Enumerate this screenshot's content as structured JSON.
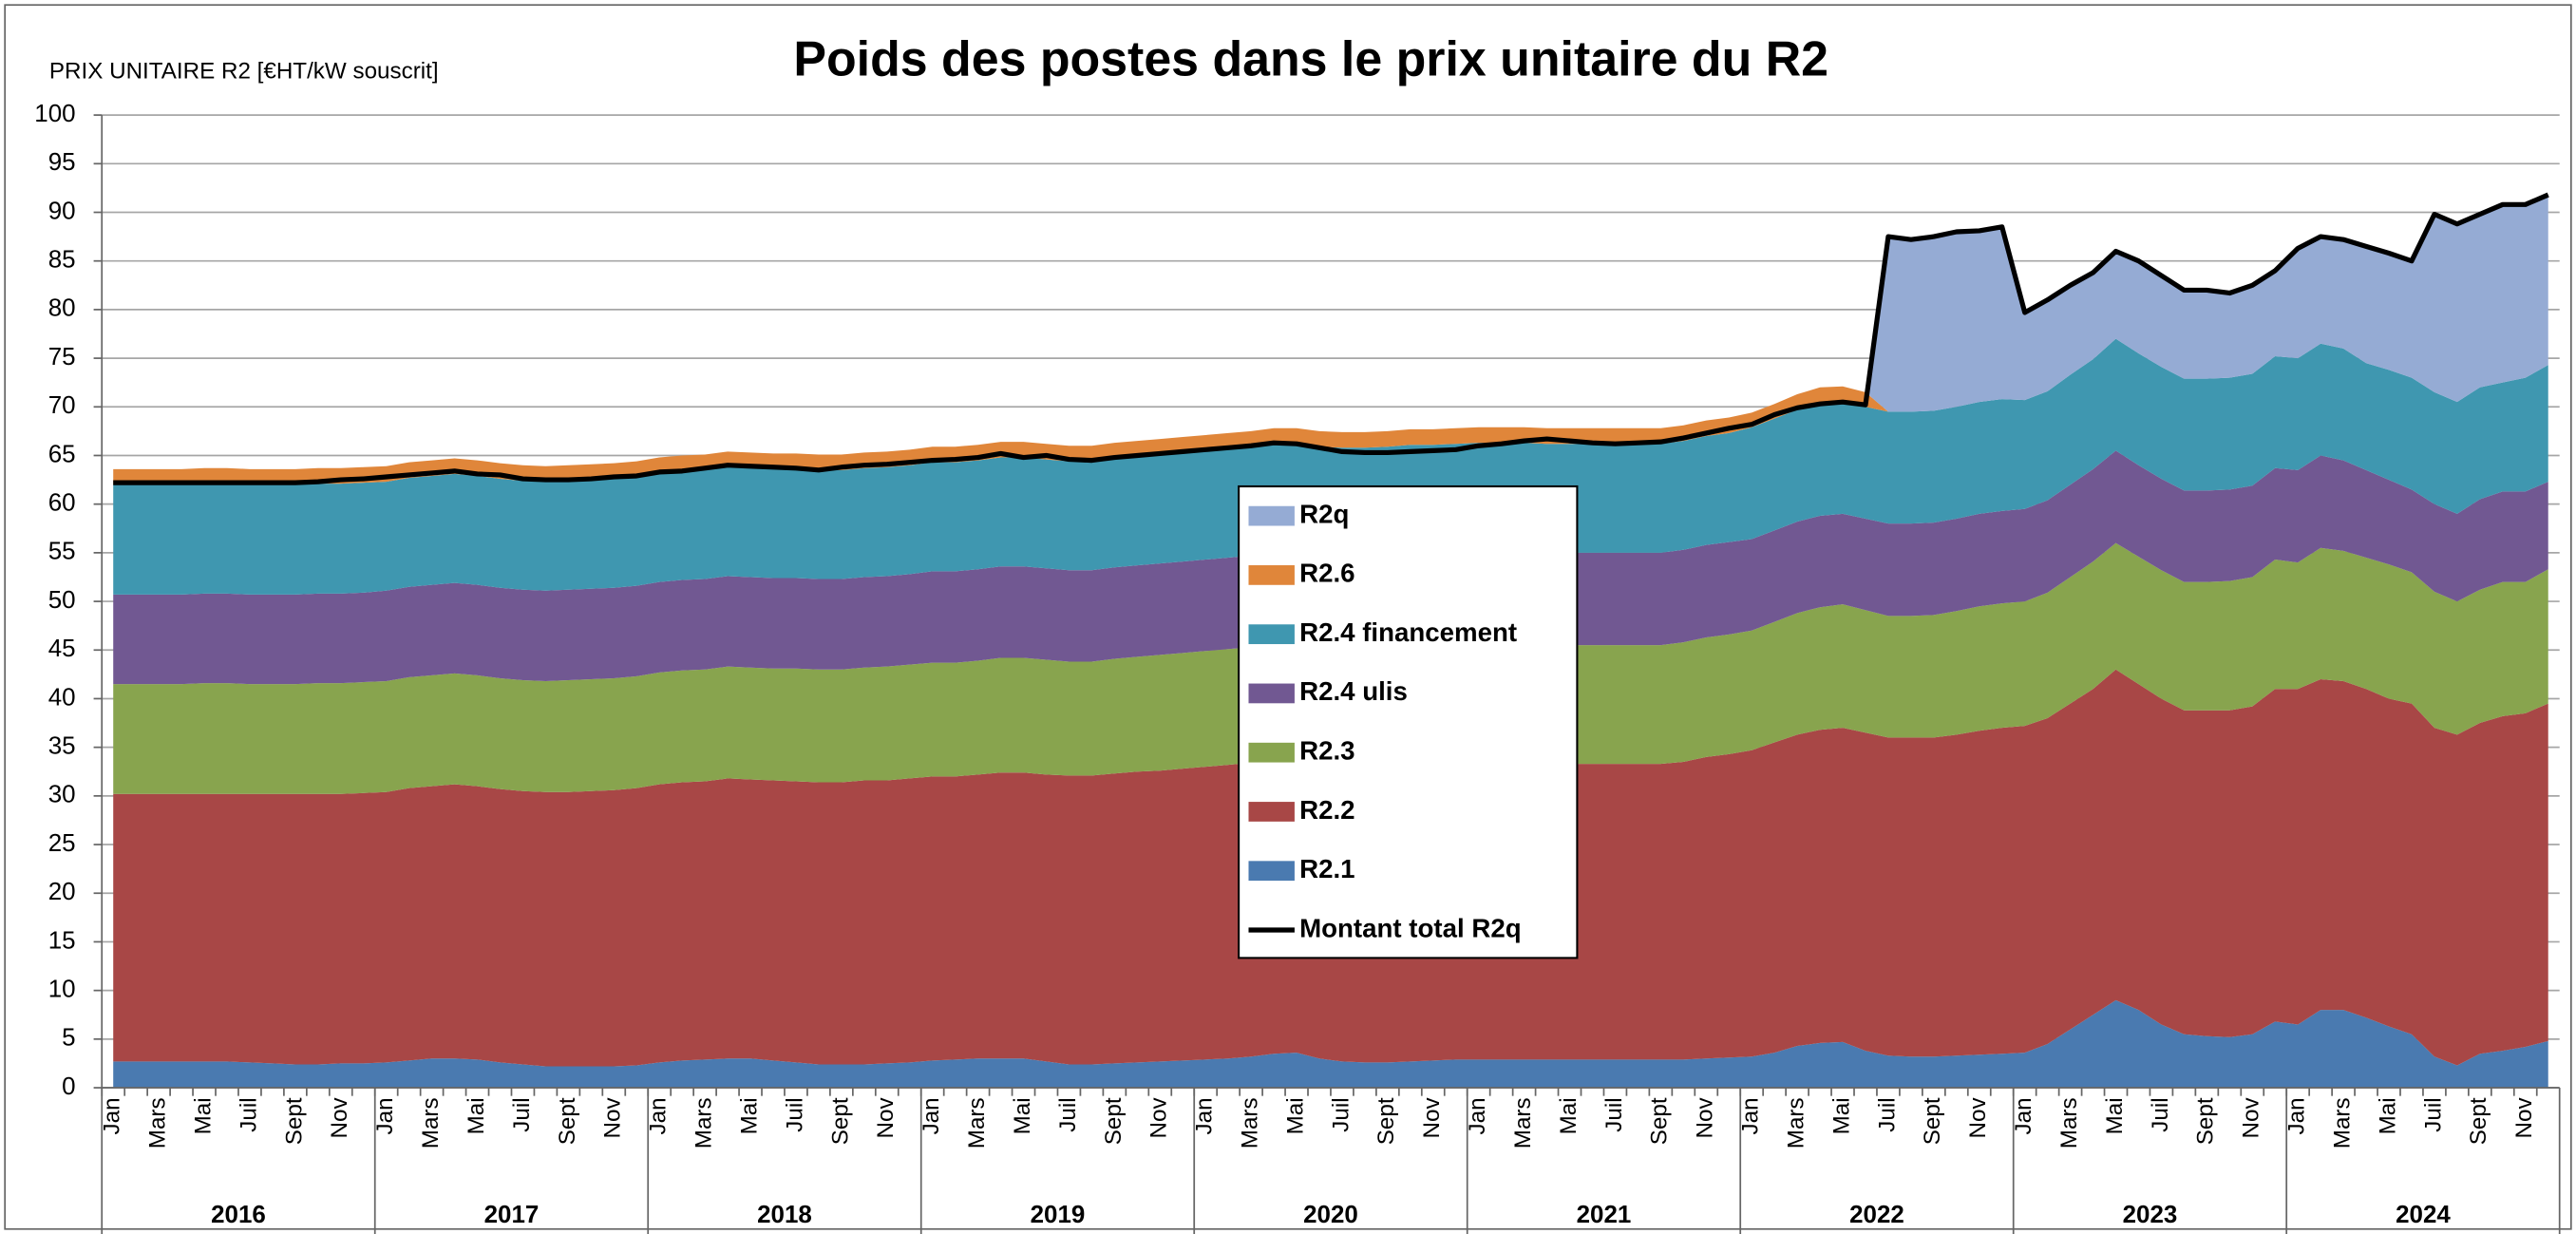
{
  "chart_data": {
    "type": "stacked_area",
    "title": "Poids des postes dans le prix unitaire du R2",
    "y_axis_label": "PRIX UNITAIRE R2 [€HT/kW souscrit]",
    "categories": [
      "Jan",
      null,
      "Mars",
      null,
      "Mai",
      null,
      "Juil",
      null,
      "Sept",
      null,
      "Nov",
      null,
      "Jan",
      null,
      "Mars",
      null,
      "Mai",
      null,
      "Juil",
      null,
      "Sept",
      null,
      "Nov",
      null,
      "Jan",
      null,
      "Mars",
      null,
      "Mai",
      null,
      "Juil",
      null,
      "Sept",
      null,
      "Nov",
      null,
      "Jan",
      null,
      "Mars",
      null,
      "Mai",
      null,
      "Juil",
      null,
      "Sept",
      null,
      "Nov",
      null,
      "Jan",
      null,
      "Mars",
      null,
      "Mai",
      null,
      "Juil",
      null,
      "Sept",
      null,
      "Nov",
      null,
      "Jan",
      null,
      "Mars",
      null,
      "Mai",
      null,
      "Juil",
      null,
      "Sept",
      null,
      "Nov",
      null,
      "Jan",
      null,
      "Mars",
      null,
      "Mai",
      null,
      "Juil",
      null,
      "Sept",
      null,
      "Nov",
      null,
      "Jan",
      null,
      "Mars",
      null,
      "Mai",
      null,
      "Juil",
      null,
      "Sept",
      null,
      "Nov",
      null,
      "Jan",
      null,
      "Mars",
      null,
      "Mai",
      null,
      "Juil",
      null,
      "Sept",
      null,
      "Nov",
      null
    ],
    "year_labels": [
      "2016",
      "2017",
      "2018",
      "2019",
      "2020",
      "2021",
      "2022",
      "2023",
      "2024"
    ],
    "ylim": [
      0,
      100
    ],
    "yticks": [
      0,
      5,
      10,
      15,
      20,
      25,
      30,
      35,
      40,
      45,
      50,
      55,
      60,
      65,
      70,
      75,
      80,
      85,
      90,
      95,
      100
    ],
    "grid": true,
    "series": [
      {
        "name": "R2.1",
        "color": "#4a7ab0",
        "values": [
          2.7,
          2.7,
          2.7,
          2.7,
          2.7,
          2.7,
          2.6,
          2.5,
          2.4,
          2.4,
          2.5,
          2.5,
          2.6,
          2.8,
          3.0,
          3.0,
          2.9,
          2.6,
          2.4,
          2.2,
          2.2,
          2.2,
          2.2,
          2.3,
          2.6,
          2.8,
          2.9,
          3.0,
          3.0,
          2.8,
          2.6,
          2.4,
          2.4,
          2.4,
          2.5,
          2.6,
          2.8,
          2.9,
          3.0,
          3.0,
          3.0,
          2.7,
          2.4,
          2.4,
          2.5,
          2.6,
          2.7,
          2.8,
          2.9,
          3.0,
          3.2,
          3.5,
          3.6,
          3.0,
          2.7,
          2.6,
          2.6,
          2.7,
          2.8,
          2.9,
          2.9,
          2.9,
          2.9,
          2.9,
          2.9,
          2.9,
          2.9,
          2.9,
          2.9,
          2.9,
          3.0,
          3.1,
          3.2,
          3.6,
          4.3,
          4.6,
          4.7,
          3.8,
          3.3,
          3.2,
          3.2,
          3.3,
          3.4,
          3.5,
          3.6,
          4.5,
          6.0,
          7.5,
          9.0,
          8.0,
          6.5,
          5.5,
          5.3,
          5.2,
          5.5,
          6.8,
          6.5,
          8.0,
          8.0,
          7.2,
          6.3,
          5.5,
          3.2,
          2.3,
          3.5,
          3.8,
          4.2,
          4.8
        ]
      },
      {
        "name": "R2.2",
        "color": "#a84746",
        "values": [
          27.5,
          27.5,
          27.5,
          27.5,
          27.5,
          27.5,
          27.6,
          27.7,
          27.8,
          27.8,
          27.7,
          27.8,
          27.8,
          28.0,
          28.0,
          28.2,
          28.1,
          28.1,
          28.1,
          28.2,
          28.2,
          28.3,
          28.4,
          28.5,
          28.6,
          28.6,
          28.6,
          28.8,
          28.7,
          28.8,
          28.9,
          29.0,
          29.0,
          29.2,
          29.1,
          29.2,
          29.2,
          29.1,
          29.2,
          29.4,
          29.4,
          29.5,
          29.7,
          29.7,
          29.8,
          29.9,
          29.9,
          30.0,
          30.1,
          30.2,
          30.2,
          30.1,
          30.0,
          30.3,
          30.5,
          30.6,
          30.7,
          30.7,
          30.6,
          30.6,
          30.6,
          30.6,
          30.5,
          30.4,
          30.4,
          30.4,
          30.4,
          30.4,
          30.4,
          30.6,
          31.0,
          31.2,
          31.5,
          31.9,
          32.0,
          32.2,
          32.3,
          32.7,
          32.7,
          32.8,
          32.8,
          33.0,
          33.3,
          33.5,
          33.6,
          33.5,
          33.5,
          33.5,
          34.0,
          33.5,
          33.5,
          33.3,
          33.5,
          33.6,
          33.7,
          34.2,
          34.5,
          34.0,
          33.8,
          33.8,
          33.7,
          34.0,
          33.8,
          34.0,
          34.0,
          34.4,
          34.3,
          34.7
        ]
      },
      {
        "name": "R2.3",
        "color": "#88a44e",
        "values": [
          11.3,
          11.3,
          11.3,
          11.3,
          11.4,
          11.4,
          11.3,
          11.3,
          11.3,
          11.4,
          11.4,
          11.4,
          11.4,
          11.4,
          11.4,
          11.4,
          11.4,
          11.4,
          11.4,
          11.4,
          11.5,
          11.5,
          11.5,
          11.5,
          11.5,
          11.5,
          11.5,
          11.5,
          11.5,
          11.5,
          11.6,
          11.6,
          11.6,
          11.6,
          11.7,
          11.7,
          11.7,
          11.7,
          11.7,
          11.8,
          11.8,
          11.8,
          11.7,
          11.7,
          11.8,
          11.8,
          11.9,
          11.9,
          11.9,
          11.9,
          11.9,
          12.0,
          12.0,
          12.0,
          12.0,
          12.0,
          12.0,
          12.1,
          12.1,
          12.1,
          12.1,
          12.1,
          12.2,
          12.2,
          12.2,
          12.2,
          12.2,
          12.2,
          12.2,
          12.3,
          12.3,
          12.3,
          12.3,
          12.4,
          12.5,
          12.6,
          12.7,
          12.6,
          12.5,
          12.5,
          12.6,
          12.7,
          12.8,
          12.8,
          12.8,
          12.9,
          13.0,
          13.1,
          13.0,
          13.1,
          13.2,
          13.2,
          13.2,
          13.3,
          13.3,
          13.3,
          13.0,
          13.5,
          13.4,
          13.5,
          13.8,
          13.5,
          14.0,
          13.7,
          13.7,
          13.8,
          13.5,
          13.8
        ]
      },
      {
        "name": "R2.4 ulis",
        "color": "#715892",
        "values": [
          9.2,
          9.2,
          9.2,
          9.2,
          9.2,
          9.2,
          9.2,
          9.2,
          9.2,
          9.2,
          9.2,
          9.2,
          9.3,
          9.3,
          9.3,
          9.3,
          9.3,
          9.3,
          9.3,
          9.3,
          9.3,
          9.3,
          9.3,
          9.3,
          9.3,
          9.3,
          9.3,
          9.3,
          9.3,
          9.3,
          9.3,
          9.3,
          9.3,
          9.3,
          9.3,
          9.3,
          9.4,
          9.4,
          9.4,
          9.4,
          9.4,
          9.4,
          9.4,
          9.4,
          9.4,
          9.4,
          9.4,
          9.4,
          9.4,
          9.4,
          9.4,
          9.4,
          9.4,
          9.4,
          9.4,
          9.4,
          9.4,
          9.4,
          9.4,
          9.4,
          9.5,
          9.5,
          9.5,
          9.5,
          9.5,
          9.5,
          9.5,
          9.5,
          9.5,
          9.5,
          9.5,
          9.5,
          9.4,
          9.4,
          9.4,
          9.4,
          9.3,
          9.4,
          9.5,
          9.5,
          9.5,
          9.5,
          9.5,
          9.5,
          9.5,
          9.5,
          9.5,
          9.5,
          9.5,
          9.4,
          9.4,
          9.4,
          9.4,
          9.4,
          9.4,
          9.4,
          9.5,
          9.5,
          9.3,
          9.0,
          8.7,
          8.5,
          9.0,
          9.0,
          9.3,
          9.3,
          9.3,
          9.0
        ]
      },
      {
        "name": "R2.4 financement",
        "color": "#3f97b0",
        "values": [
          11.3,
          11.3,
          11.3,
          11.3,
          11.3,
          11.3,
          11.3,
          11.3,
          11.3,
          11.3,
          11.3,
          11.3,
          11.2,
          11.2,
          11.2,
          11.2,
          11.2,
          11.2,
          11.2,
          11.2,
          11.2,
          11.2,
          11.2,
          11.2,
          11.2,
          11.2,
          11.2,
          11.2,
          11.2,
          11.2,
          11.2,
          11.2,
          11.2,
          11.2,
          11.2,
          11.2,
          11.2,
          11.2,
          11.2,
          11.2,
          11.2,
          11.2,
          11.2,
          11.2,
          11.2,
          11.2,
          11.2,
          11.2,
          11.2,
          11.2,
          11.2,
          11.2,
          11.2,
          11.2,
          11.2,
          11.2,
          11.2,
          11.2,
          11.2,
          11.2,
          11.2,
          11.2,
          11.2,
          11.2,
          11.2,
          11.2,
          11.2,
          11.2,
          11.2,
          11.2,
          11.2,
          11.2,
          11.5,
          11.5,
          11.5,
          11.5,
          11.5,
          11.5,
          11.5,
          11.5,
          11.5,
          11.5,
          11.5,
          11.5,
          11.2,
          11.2,
          11.3,
          11.3,
          11.5,
          11.5,
          11.5,
          11.5,
          11.5,
          11.5,
          11.5,
          11.5,
          11.5,
          11.5,
          11.5,
          11.0,
          11.3,
          11.5,
          11.5,
          11.5,
          11.5,
          11.2,
          11.7,
          12.0
        ]
      },
      {
        "name": "R2.6",
        "color": "#e0863a",
        "values": [
          1.6,
          1.6,
          1.6,
          1.6,
          1.6,
          1.6,
          1.6,
          1.6,
          1.6,
          1.6,
          1.6,
          1.6,
          1.6,
          1.6,
          1.6,
          1.6,
          1.6,
          1.6,
          1.6,
          1.6,
          1.6,
          1.6,
          1.6,
          1.6,
          1.6,
          1.6,
          1.6,
          1.6,
          1.6,
          1.6,
          1.6,
          1.6,
          1.6,
          1.6,
          1.6,
          1.6,
          1.6,
          1.6,
          1.6,
          1.6,
          1.6,
          1.6,
          1.6,
          1.6,
          1.6,
          1.6,
          1.6,
          1.6,
          1.6,
          1.6,
          1.6,
          1.6,
          1.6,
          1.6,
          1.6,
          1.6,
          1.6,
          1.6,
          1.6,
          1.6,
          1.6,
          1.6,
          1.6,
          1.6,
          1.6,
          1.6,
          1.6,
          1.6,
          1.6,
          1.6,
          1.6,
          1.6,
          1.5,
          1.5,
          1.6,
          1.7,
          1.6,
          1.5,
          0,
          0,
          0,
          0,
          0,
          0,
          0,
          0,
          0,
          0,
          0,
          0,
          0,
          0,
          0,
          0,
          0,
          0,
          0,
          0,
          0,
          0,
          0,
          0,
          0,
          0,
          0,
          0,
          0,
          0
        ]
      },
      {
        "name": "R2q",
        "color": "#95abd4",
        "values": [
          0,
          0,
          0,
          0,
          0,
          0,
          0,
          0,
          0,
          0,
          0,
          0,
          0,
          0,
          0,
          0,
          0,
          0,
          0,
          0,
          0,
          0,
          0,
          0,
          0,
          0,
          0,
          0,
          0,
          0,
          0,
          0,
          0,
          0,
          0,
          0,
          0,
          0,
          0,
          0,
          0,
          0,
          0,
          0,
          0,
          0,
          0,
          0,
          0,
          0,
          0,
          0,
          0,
          0,
          0,
          0,
          0,
          0,
          0,
          0,
          0,
          0,
          0,
          0,
          0,
          0,
          0,
          0,
          0,
          0,
          0,
          0,
          0,
          0,
          0,
          0,
          0,
          0,
          18.0,
          17.7,
          17.9,
          18.0,
          17.6,
          17.7,
          9.0,
          9.4,
          9.2,
          8.9,
          9.0,
          9.5,
          9.4,
          9.1,
          9.1,
          8.7,
          9.1,
          8.8,
          11.3,
          11.0,
          11.2,
          12.0,
          12.0,
          12.0,
          18.3,
          18.3,
          17.8,
          18.3,
          17.8,
          17.5
        ]
      }
    ],
    "line_series": {
      "name": "Montant total R2q",
      "color": "#000000",
      "values": [
        62.2,
        62.2,
        62.2,
        62.2,
        62.2,
        62.2,
        62.2,
        62.2,
        62.2,
        62.3,
        62.5,
        62.6,
        62.8,
        63.0,
        63.2,
        63.4,
        63.1,
        63.0,
        62.6,
        62.5,
        62.5,
        62.6,
        62.8,
        62.9,
        63.3,
        63.4,
        63.7,
        64.0,
        63.9,
        63.8,
        63.7,
        63.5,
        63.8,
        64.0,
        64.1,
        64.3,
        64.5,
        64.6,
        64.8,
        65.2,
        64.8,
        65.0,
        64.6,
        64.5,
        64.8,
        65.0,
        65.2,
        65.4,
        65.6,
        65.8,
        66.0,
        66.3,
        66.2,
        65.8,
        65.4,
        65.3,
        65.3,
        65.4,
        65.5,
        65.6,
        66.0,
        66.2,
        66.5,
        66.7,
        66.5,
        66.3,
        66.2,
        66.3,
        66.4,
        66.8,
        67.3,
        67.8,
        68.2,
        69.2,
        69.9,
        70.3,
        70.5,
        70.2,
        87.5,
        87.2,
        87.5,
        88.0,
        88.1,
        88.5,
        79.7,
        81.0,
        82.5,
        83.8,
        86.0,
        85.0,
        83.5,
        82.0,
        82.0,
        81.7,
        82.5,
        84.0,
        86.3,
        87.5,
        87.2,
        86.5,
        85.8,
        85.0,
        89.8,
        88.8,
        89.8,
        90.8,
        90.8,
        91.8
      ]
    }
  }
}
